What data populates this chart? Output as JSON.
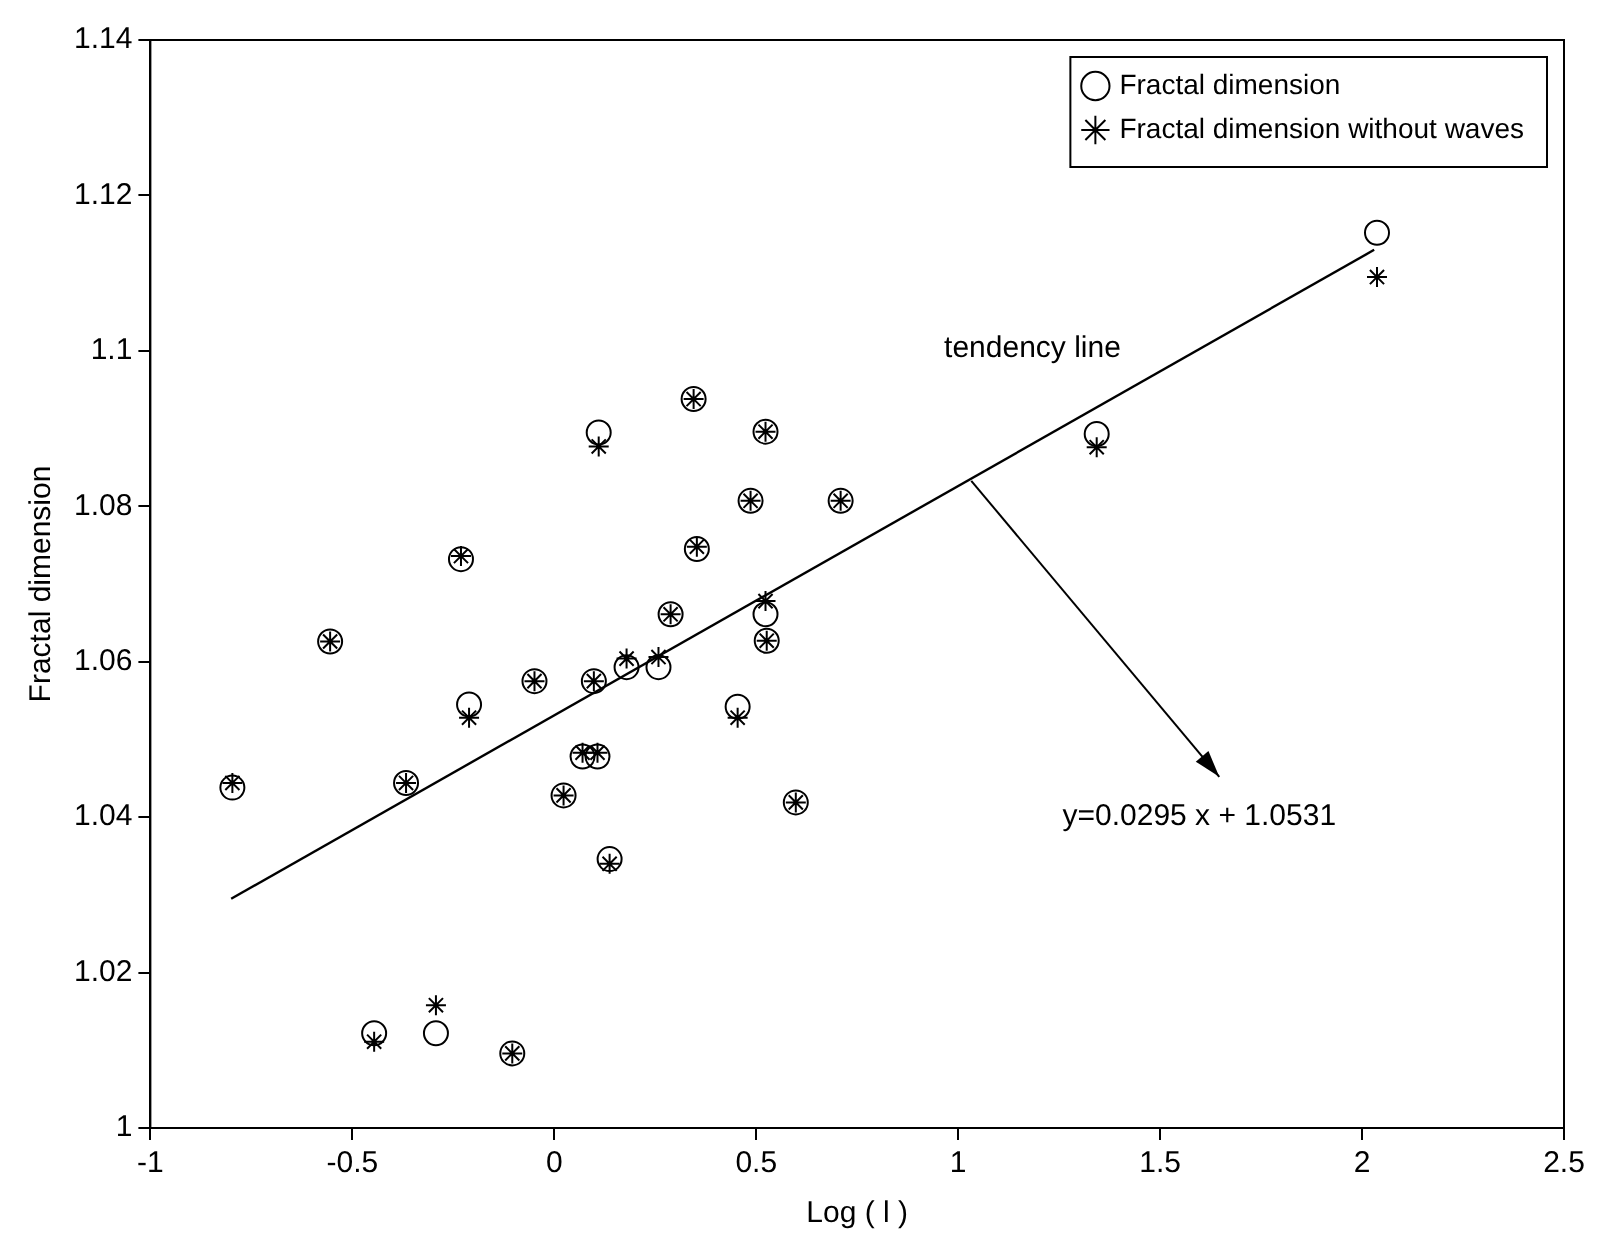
{
  "chart_data": {
    "type": "scatter",
    "xlabel": "Log ( l )",
    "ylabel": "Fractal dimension",
    "xlim": [
      -1,
      2.5
    ],
    "xticks": [
      -1,
      -0.5,
      0,
      0.5,
      1,
      1.5,
      2,
      2.5
    ],
    "ylim": [
      1,
      1.14
    ],
    "yticks": [
      1,
      1.02,
      1.04,
      1.06,
      1.08,
      1.1,
      1.12,
      1.14
    ],
    "grid": false,
    "legend": "top right",
    "series": [
      {
        "name": "Fractal dimension",
        "color": "#000000",
        "marker": "circle",
        "x": [
          -0.797,
          -0.555,
          -0.446,
          -0.367,
          -0.293,
          -0.231,
          -0.211,
          -0.104,
          -0.049,
          0.023,
          0.07,
          0.098,
          0.107,
          0.11,
          0.137,
          0.179,
          0.258,
          0.288,
          0.345,
          0.353,
          0.454,
          0.486,
          0.523,
          0.523,
          0.526,
          0.598,
          0.709,
          1.343,
          2.037
        ],
        "values": [
          1.0438,
          1.0626,
          1.0122,
          1.0444,
          1.0122,
          1.0732,
          1.0545,
          1.0096,
          1.0575,
          1.0428,
          1.0478,
          1.0575,
          1.0478,
          1.0895,
          1.0346,
          1.0593,
          1.0593,
          1.0661,
          1.0938,
          1.0745,
          1.0542,
          1.0807,
          1.0896,
          1.0661,
          1.0627,
          1.0419,
          1.0807,
          1.0893,
          1.1152
        ]
      },
      {
        "name": "Fractal dimension without waves",
        "color": "#000000",
        "marker": "cross",
        "x": [
          -0.797,
          -0.555,
          -0.446,
          -0.367,
          -0.293,
          -0.231,
          -0.211,
          -0.104,
          -0.049,
          0.023,
          0.07,
          0.098,
          0.107,
          0.11,
          0.137,
          0.179,
          0.258,
          0.288,
          0.345,
          0.353,
          0.454,
          0.486,
          0.523,
          0.523,
          0.526,
          0.598,
          0.709,
          1.343,
          2.037
        ],
        "values": [
          1.0444,
          1.0626,
          1.0111,
          1.0444,
          1.0158,
          1.0736,
          1.0528,
          1.0096,
          1.0575,
          1.0428,
          1.0483,
          1.0575,
          1.0483,
          1.0877,
          1.034,
          1.0604,
          1.0606,
          1.0661,
          1.0938,
          1.0748,
          1.0528,
          1.0807,
          1.0896,
          1.0678,
          1.0627,
          1.0419,
          1.0807,
          1.0876,
          1.1095
        ]
      },
      {
        "type": "line",
        "color": "#000000",
        "marker": "none",
        "line_style": "solid",
        "x": [
          -0.8,
          2.03
        ],
        "values": [
          1.0295,
          1.113
        ]
      }
    ],
    "annotations": [
      "tendency line",
      "y=0.0295 x + 1.0531"
    ]
  }
}
